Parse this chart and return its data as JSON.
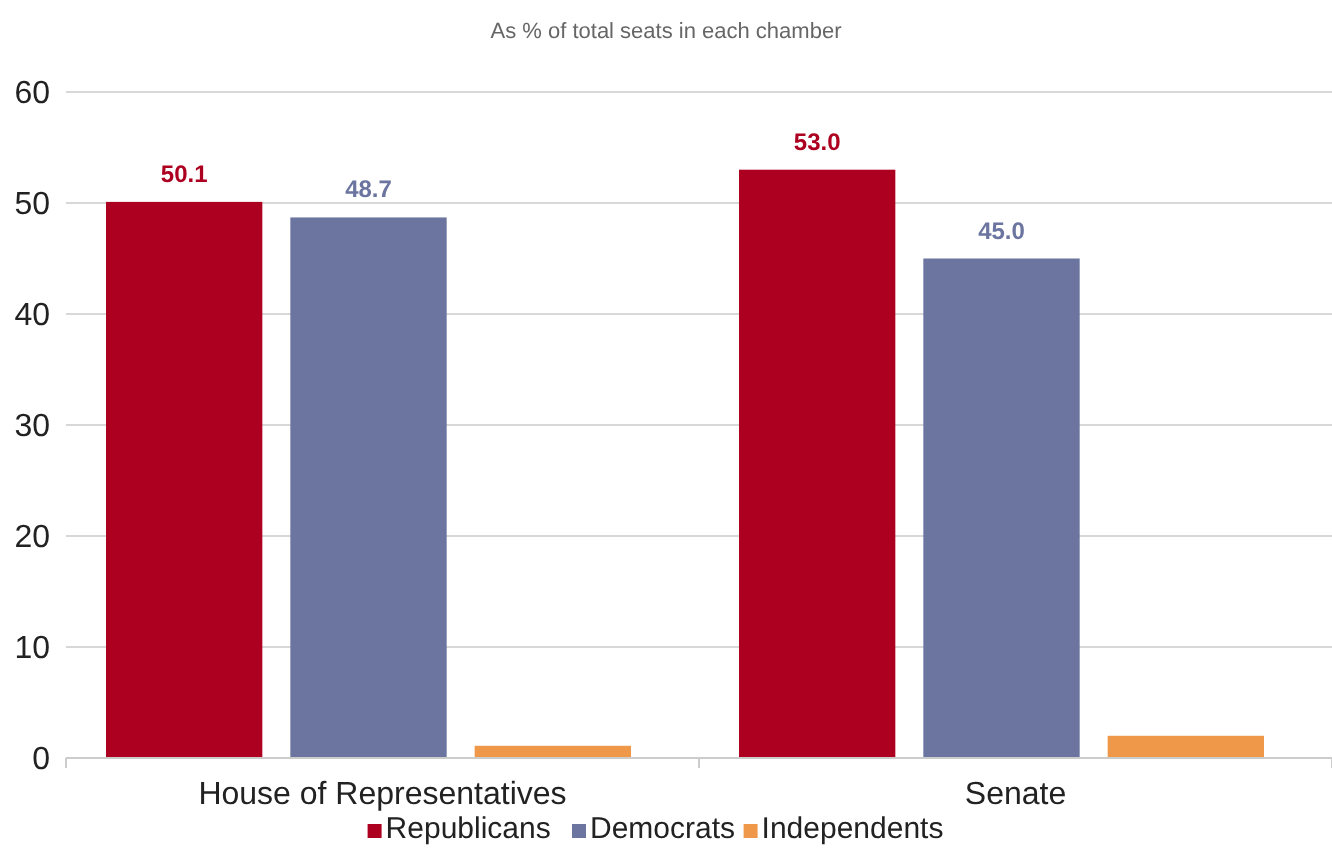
{
  "chart_data": {
    "type": "bar",
    "subtitle": "As % of total seats in each chamber",
    "categories": [
      "House of Representatives",
      "Senate"
    ],
    "series": [
      {
        "name": "Republicans",
        "color": "#ad0021",
        "values": [
          50.1,
          53.0
        ],
        "value_labels": [
          "50.1",
          "53.0"
        ]
      },
      {
        "name": "Democrats",
        "color": "#6b75a0",
        "values": [
          48.7,
          45.0
        ],
        "value_labels": [
          "48.7",
          "45.0"
        ]
      },
      {
        "name": "Independents",
        "color": "#f0984a",
        "values": [
          1.1,
          2.0
        ],
        "value_labels": [
          null,
          null
        ]
      }
    ],
    "ylim": [
      0,
      60
    ],
    "yticks": [
      0,
      10,
      20,
      30,
      40,
      50,
      60
    ],
    "grid": "y",
    "legend": "bottom"
  }
}
